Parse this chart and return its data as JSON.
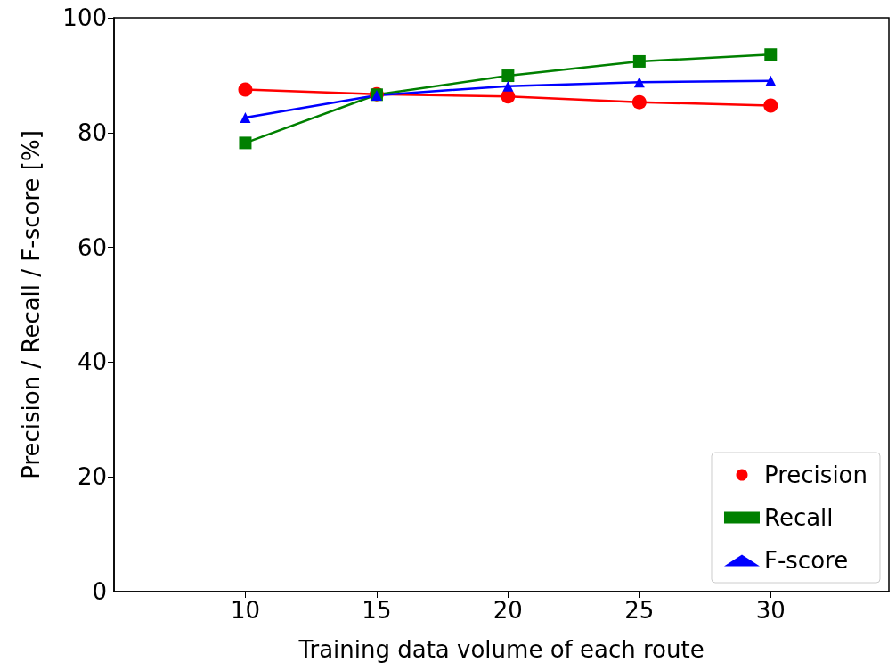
{
  "chart_data": {
    "type": "line",
    "xlabel": "Training data volume of each route",
    "ylabel": "Precision / Recall / F-score [%]",
    "x": [
      10,
      15,
      20,
      25,
      30
    ],
    "xlim": [
      5,
      34.5
    ],
    "xticks": [
      10,
      15,
      20,
      25,
      30
    ],
    "ylim": [
      0,
      100
    ],
    "yticks": [
      0,
      20,
      40,
      60,
      80,
      100
    ],
    "legend": "bottom right",
    "grid": false,
    "series": [
      {
        "name": "Precision",
        "color": "#ff0000",
        "marker": "circle",
        "values": [
          87.5,
          86.7,
          86.3,
          85.3,
          84.7
        ]
      },
      {
        "name": "Recall",
        "color": "#008000",
        "marker": "square",
        "values": [
          78.2,
          86.6,
          89.9,
          92.4,
          93.6
        ]
      },
      {
        "name": "F-score",
        "color": "#0000ff",
        "marker": "triangle",
        "values": [
          82.6,
          86.5,
          88.1,
          88.8,
          89.0
        ]
      }
    ]
  }
}
